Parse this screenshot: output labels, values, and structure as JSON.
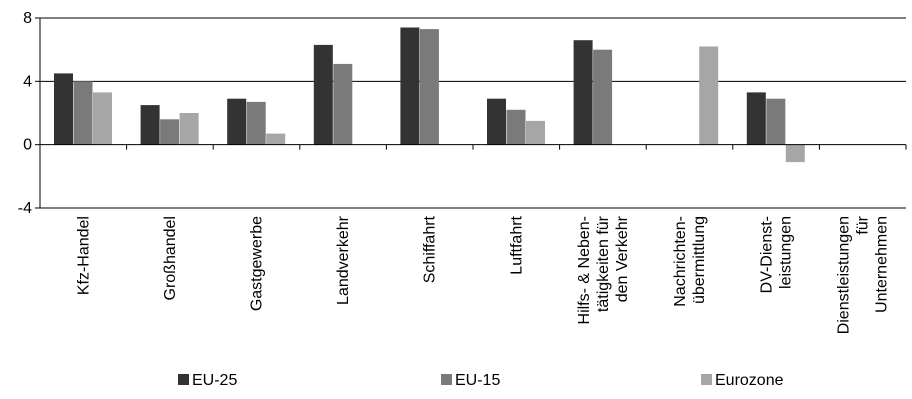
{
  "chart_data": {
    "type": "bar",
    "title": "",
    "xlabel": "",
    "ylabel": "",
    "ylim": [
      -4,
      8
    ],
    "yticks": [
      -4,
      0,
      4,
      8
    ],
    "grid": "horizontal",
    "legend_position": "bottom",
    "categories": [
      "Kfz-Handel",
      "Großhandel",
      "Gastgewerbe",
      "Landverkehr",
      "Schiffahrt",
      "Luftfahrt",
      "Hilfs- & Neben- tätigkeiten für den Verkehr",
      "Nachrichten- übermittlung",
      "DV-Dienst- leistungen",
      "Dienstleistungen für Unternehmen"
    ],
    "category_lines": [
      [
        "Kfz-Handel"
      ],
      [
        "Großhandel"
      ],
      [
        "Gastgewerbe"
      ],
      [
        "Landverkehr"
      ],
      [
        "Schiffahrt"
      ],
      [
        "Luftfahrt"
      ],
      [
        "Hilfs- & Neben-",
        "tätigkeiten für",
        "den Verkehr"
      ],
      [
        "Nachrichten-",
        "übermittlung"
      ],
      [
        "DV-Dienst-",
        "leistungen"
      ],
      [
        "Dienstleistungen",
        "für",
        "Unternehmen"
      ]
    ],
    "series": [
      {
        "name": "EU-25",
        "color": "#333333",
        "values": [
          4.5,
          2.5,
          2.9,
          6.3,
          7.4,
          2.9,
          6.6,
          null,
          3.3,
          null
        ]
      },
      {
        "name": "EU-15",
        "color": "#7a7a7a",
        "values": [
          4.0,
          1.6,
          2.7,
          5.1,
          7.3,
          2.2,
          6.0,
          null,
          2.9,
          null
        ]
      },
      {
        "name": "Eurozone",
        "color": "#a6a6a6",
        "values": [
          3.3,
          2.0,
          0.7,
          null,
          null,
          1.5,
          null,
          6.2,
          -1.1,
          null
        ]
      }
    ]
  }
}
